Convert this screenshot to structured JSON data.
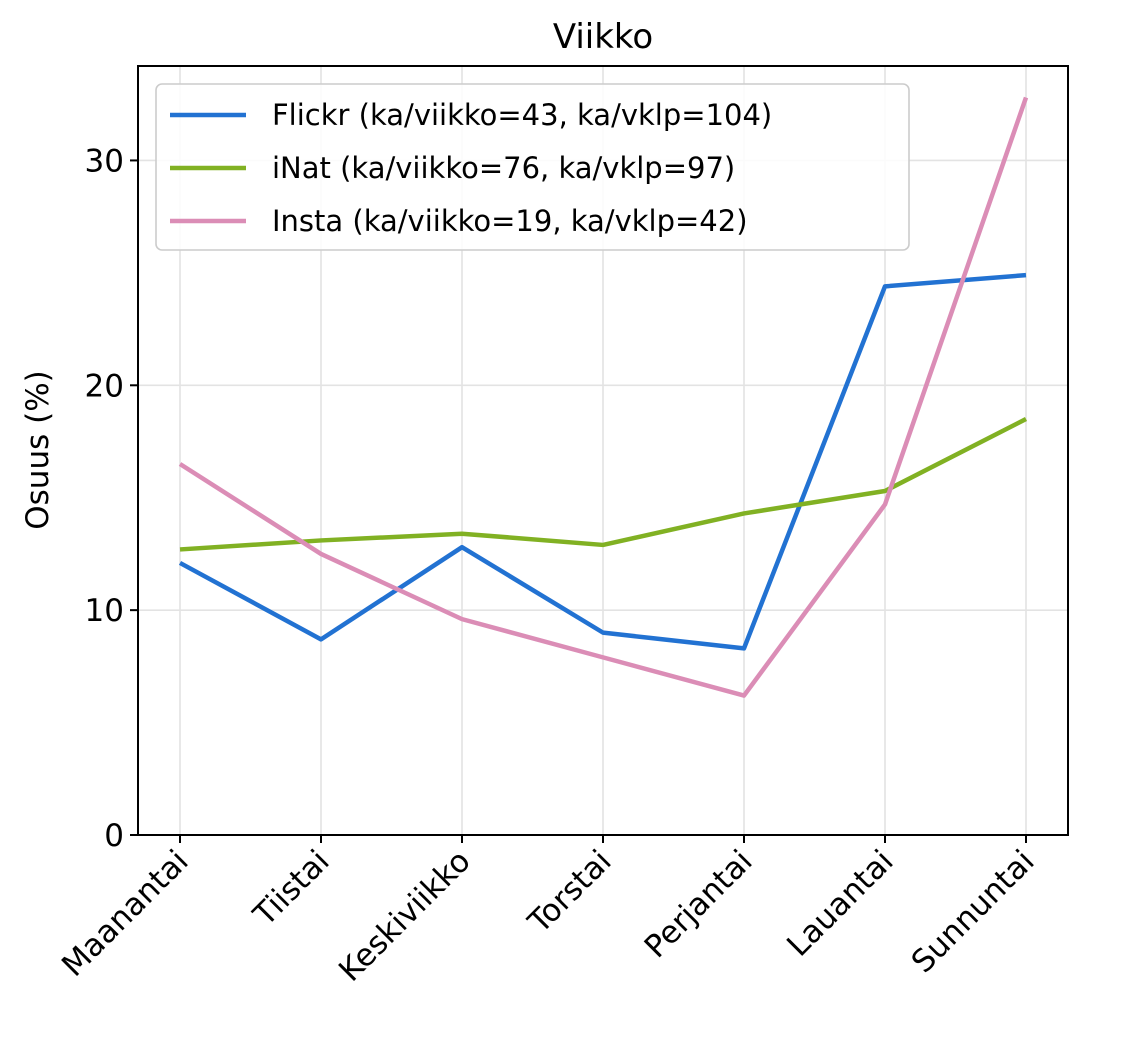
{
  "chart_data": {
    "type": "line",
    "title": "Viikko",
    "xlabel": "",
    "ylabel": "Osuus (%)",
    "categories": [
      "Maanantai",
      "Tiistai",
      "Keskiviikko",
      "Torstai",
      "Perjantai",
      "Lauantai",
      "Sunnuntai"
    ],
    "ylim": [
      0,
      34.2
    ],
    "yticks": [
      "0",
      "10",
      "20",
      "30"
    ],
    "grid": true,
    "legend_position": "upper-left",
    "series": [
      {
        "name": "Flickr (ka/viikko=43, ka/vklp=104)",
        "color": "#2272d2",
        "values": [
          12.1,
          8.7,
          12.8,
          9.0,
          8.3,
          24.4,
          24.9
        ]
      },
      {
        "name": "iNat (ka/viikko=76, ka/vklp=97)",
        "color": "#81b123",
        "values": [
          12.7,
          13.1,
          13.4,
          12.9,
          14.3,
          15.3,
          18.5
        ]
      },
      {
        "name": "Insta (ka/viikko=19, ka/vklp=42)",
        "color": "#db8db6",
        "values": [
          16.5,
          12.5,
          9.6,
          7.9,
          6.2,
          14.7,
          32.8
        ]
      }
    ]
  }
}
